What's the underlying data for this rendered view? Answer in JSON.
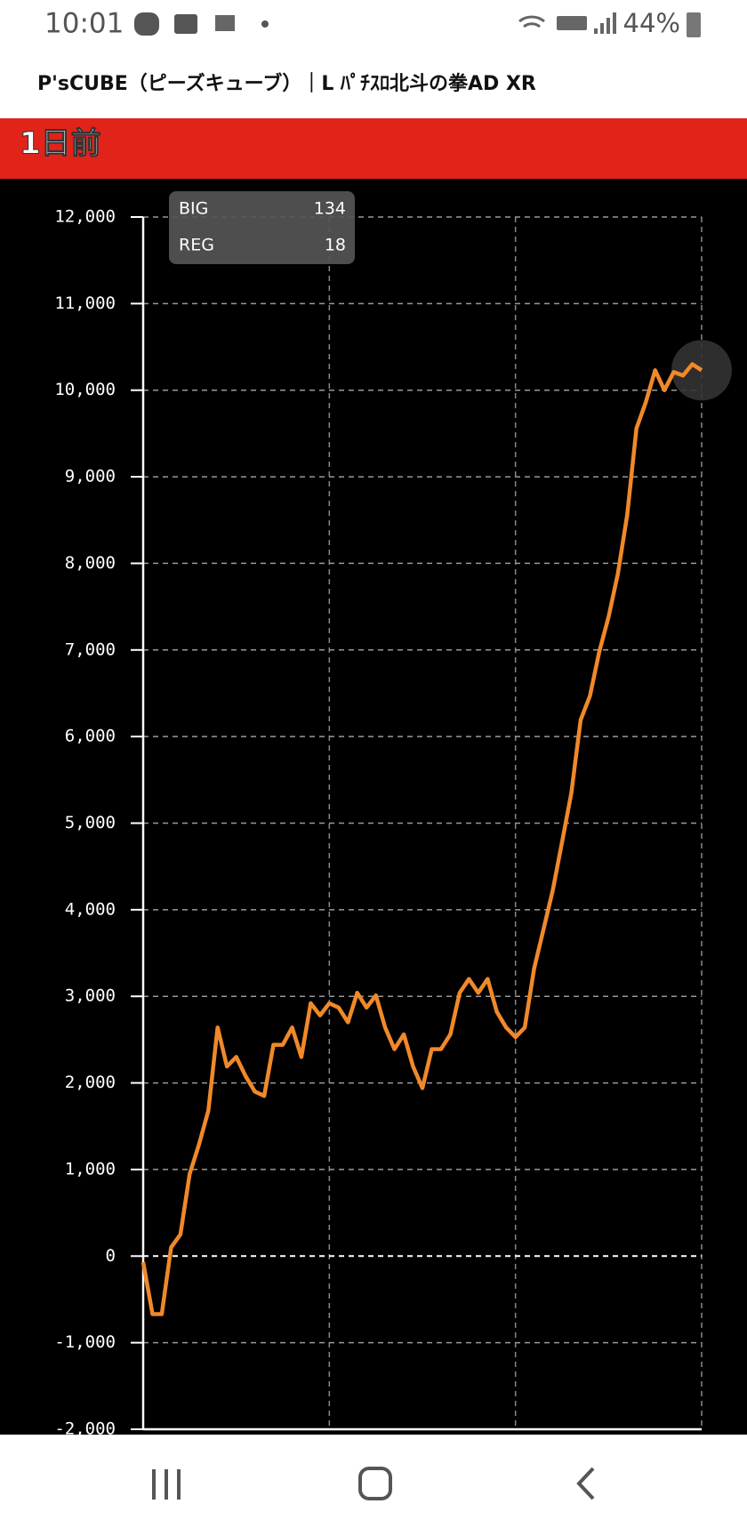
{
  "status": {
    "time": "10:01",
    "battery": "44%"
  },
  "header": {
    "title": "P'sCUBE（ピーズキューブ）｜L ﾊﾟﾁｽﾛ北斗の拳AD XR"
  },
  "section": {
    "title": "1日前"
  },
  "chart_data": {
    "type": "line",
    "color": "#f0892a",
    "grid": true,
    "stats": [
      {
        "label": "BIG",
        "value": "134"
      },
      {
        "label": "REG",
        "value": "18"
      }
    ],
    "ylim": [
      -2000,
      12000
    ],
    "yticks": [
      {
        "value": -2000,
        "label": "-2,000"
      },
      {
        "value": -1000,
        "label": "-1,000"
      },
      0,
      {
        "value": 1000,
        "label": "1,000"
      },
      {
        "value": 2000,
        "label": "2,000"
      },
      {
        "value": 3000,
        "label": "3,000"
      },
      {
        "value": 4000,
        "label": "4,000"
      },
      {
        "value": 5000,
        "label": "5,000"
      },
      {
        "value": 6000,
        "label": "6,000"
      },
      {
        "value": 7000,
        "label": "7,000"
      },
      {
        "value": 8000,
        "label": "8,000"
      },
      {
        "value": 9000,
        "label": "9,000"
      },
      {
        "value": 10000,
        "label": "10,000"
      },
      {
        "value": 11000,
        "label": "11,000"
      },
      {
        "value": 12000,
        "label": "12,000"
      }
    ],
    "values": [
      -70,
      -670,
      -670,
      100,
      250,
      950,
      1290,
      1680,
      2640,
      2190,
      2300,
      2080,
      1900,
      1850,
      2440,
      2440,
      2640,
      2300,
      2920,
      2780,
      2920,
      2870,
      2700,
      3040,
      2870,
      3010,
      2640,
      2390,
      2560,
      2190,
      1940,
      2390,
      2390,
      2560,
      3040,
      3200,
      3040,
      3200,
      2820,
      2640,
      2530,
      2640,
      3320,
      3770,
      4220,
      4780,
      5350,
      6190,
      6470,
      6980,
      7380,
      7880,
      8560,
      9560,
      9860,
      10230,
      10000,
      10210,
      10170,
      10300,
      10230
    ]
  }
}
